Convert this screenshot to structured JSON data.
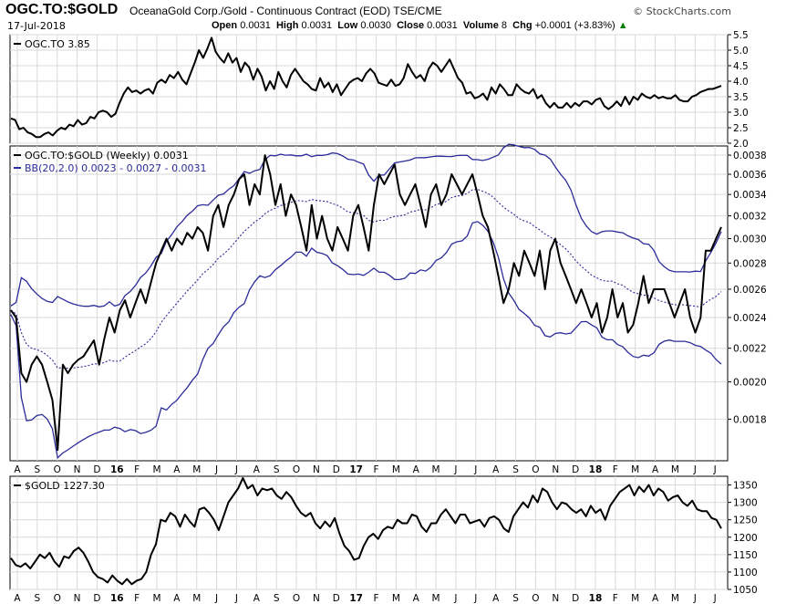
{
  "header": {
    "symbol": "OGC.TO:$GOLD",
    "description": "OceanaGold Corp./Gold - Continuous Contract (EOD) TSE/CME",
    "brand": "© StockCharts.com",
    "date": "17-Jul-2018",
    "open_label": "Open",
    "open_value": "0.0031",
    "high_label": "High",
    "high_value": "0.0031",
    "low_label": "Low",
    "low_value": "0.0030",
    "close_label": "Close",
    "close_value": "0.0031",
    "volume_label": "Volume",
    "volume_value": "8",
    "chg_label": "Chg",
    "chg_value": "+0.0001 (+3.83%)"
  },
  "colors": {
    "price_line": "#000000",
    "bb_band": "#2b2b9a",
    "grid": "#d9d9d9",
    "chg_up": "#008000"
  },
  "chart_data": [
    {
      "type": "line",
      "legend": "OGC.TO 3.85",
      "x_labels": [
        "A",
        "S",
        "O",
        "N",
        "D",
        "16",
        "F",
        "M",
        "A",
        "M",
        "J",
        "J",
        "A",
        "S",
        "O",
        "N",
        "D",
        "17",
        "F",
        "M",
        "A",
        "M",
        "J",
        "J",
        "A",
        "S",
        "O",
        "N",
        "D",
        "18",
        "F",
        "M",
        "A",
        "M",
        "J",
        "J"
      ],
      "yticks": [
        "5.5",
        "5.0",
        "4.5",
        "4.0",
        "3.5",
        "3.0",
        "2.5",
        "2.0"
      ],
      "ylim": [
        2.0,
        5.5
      ],
      "values": [
        2.8,
        2.75,
        2.45,
        2.5,
        2.35,
        2.3,
        2.2,
        2.2,
        2.3,
        2.35,
        2.25,
        2.4,
        2.5,
        2.45,
        2.6,
        2.55,
        2.75,
        2.6,
        2.65,
        2.85,
        2.8,
        3.0,
        3.05,
        3.0,
        2.85,
        2.95,
        3.3,
        3.6,
        3.8,
        3.65,
        3.7,
        3.6,
        3.7,
        3.75,
        3.6,
        3.95,
        4.05,
        3.95,
        4.2,
        4.1,
        4.3,
        4.05,
        3.9,
        4.25,
        4.6,
        5.0,
        4.75,
        5.05,
        5.4,
        4.95,
        4.75,
        4.6,
        4.9,
        4.6,
        4.75,
        4.3,
        4.6,
        4.45,
        4.05,
        4.4,
        4.15,
        3.7,
        4.0,
        3.75,
        4.3,
        4.0,
        3.8,
        4.2,
        4.4,
        4.2,
        4.0,
        3.9,
        3.75,
        3.7,
        4.1,
        3.8,
        3.95,
        3.65,
        3.9,
        3.55,
        3.75,
        3.95,
        4.05,
        4.1,
        4.0,
        4.25,
        4.4,
        4.25,
        3.95,
        3.9,
        3.85,
        4.05,
        3.85,
        3.9,
        4.1,
        4.55,
        4.3,
        4.1,
        4.2,
        4.0,
        4.4,
        4.6,
        4.5,
        4.3,
        4.5,
        4.7,
        4.4,
        4.1,
        3.95,
        3.6,
        3.65,
        3.45,
        3.5,
        3.6,
        3.4,
        3.8,
        3.6,
        3.9,
        3.75,
        3.55,
        3.55,
        3.9,
        3.75,
        3.65,
        3.6,
        3.75,
        3.45,
        3.55,
        3.3,
        3.15,
        3.3,
        3.15,
        3.15,
        3.3,
        3.15,
        3.3,
        3.2,
        3.35,
        3.35,
        3.25,
        3.4,
        3.45,
        3.2,
        3.1,
        3.2,
        3.35,
        3.2,
        3.5,
        3.25,
        3.5,
        3.4,
        3.6,
        3.5,
        3.45,
        3.55,
        3.45,
        3.5,
        3.45,
        3.45,
        3.55,
        3.4,
        3.35,
        3.35,
        3.5,
        3.55,
        3.65,
        3.7,
        3.75,
        3.75,
        3.8,
        3.85
      ]
    },
    {
      "type": "line",
      "legend": "OGC.TO:$GOLD (Weekly) 0.0031",
      "bb_legend": "BB(20,2.0) 0.0023 - 0.0027 - 0.0031",
      "yticks": [
        "0.0038",
        "0.0036",
        "0.0034",
        "0.0032",
        "0.0030",
        "0.0028",
        "0.0026",
        "0.0024",
        "0.0022",
        "0.0020",
        "0.0018"
      ],
      "ylim": [
        0.0016,
        0.0039
      ],
      "log_scale": true,
      "values": [
        0.00245,
        0.0024,
        0.00205,
        0.002,
        0.0021,
        0.00215,
        0.0021,
        0.002,
        0.0019,
        0.00165,
        0.0021,
        0.00205,
        0.0021,
        0.00213,
        0.00215,
        0.0022,
        0.00225,
        0.0021,
        0.00226,
        0.0024,
        0.0023,
        0.00245,
        0.00252,
        0.0024,
        0.0025,
        0.0026,
        0.0025,
        0.00265,
        0.0028,
        0.0029,
        0.003,
        0.0029,
        0.003,
        0.00295,
        0.00305,
        0.003,
        0.0031,
        0.00305,
        0.0029,
        0.0032,
        0.0033,
        0.0031,
        0.0033,
        0.0034,
        0.00355,
        0.0036,
        0.0033,
        0.0035,
        0.0034,
        0.0038,
        0.0036,
        0.0033,
        0.0035,
        0.0032,
        0.0034,
        0.0033,
        0.0031,
        0.0029,
        0.0033,
        0.003,
        0.0032,
        0.003,
        0.0029,
        0.0031,
        0.003,
        0.0029,
        0.0032,
        0.0033,
        0.0031,
        0.0029,
        0.0033,
        0.0036,
        0.0035,
        0.0036,
        0.0037,
        0.0034,
        0.0033,
        0.0034,
        0.0035,
        0.0033,
        0.0031,
        0.0034,
        0.0035,
        0.0033,
        0.0034,
        0.0036,
        0.0035,
        0.0034,
        0.0035,
        0.0036,
        0.0034,
        0.0032,
        0.0031,
        0.0029,
        0.0027,
        0.0025,
        0.0026,
        0.0028,
        0.0027,
        0.0029,
        0.0028,
        0.0027,
        0.0029,
        0.0026,
        0.0029,
        0.003,
        0.0028,
        0.0027,
        0.0026,
        0.0025,
        0.0026,
        0.0025,
        0.0024,
        0.0025,
        0.0023,
        0.0024,
        0.0026,
        0.0024,
        0.0025,
        0.0023,
        0.00235,
        0.0025,
        0.0027,
        0.0025,
        0.0026,
        0.0026,
        0.0026,
        0.0025,
        0.0024,
        0.0025,
        0.0026,
        0.0024,
        0.0023,
        0.0024,
        0.0029,
        0.0029,
        0.003,
        0.0031
      ]
    },
    {
      "type": "line",
      "legend": "$GOLD 1227.30",
      "yticks": [
        "1350",
        "1300",
        "1250",
        "1200",
        "1150",
        "1100",
        "1050"
      ],
      "ylim": [
        1050,
        1375
      ],
      "values": [
        1140,
        1120,
        1115,
        1125,
        1110,
        1130,
        1150,
        1140,
        1155,
        1130,
        1115,
        1145,
        1140,
        1160,
        1170,
        1155,
        1130,
        1100,
        1085,
        1080,
        1070,
        1090,
        1075,
        1065,
        1080,
        1065,
        1075,
        1080,
        1100,
        1150,
        1180,
        1250,
        1245,
        1270,
        1260,
        1230,
        1265,
        1245,
        1230,
        1280,
        1285,
        1270,
        1250,
        1220,
        1260,
        1300,
        1320,
        1340,
        1370,
        1340,
        1350,
        1320,
        1340,
        1335,
        1340,
        1320,
        1310,
        1330,
        1315,
        1290,
        1270,
        1260,
        1270,
        1240,
        1225,
        1245,
        1230,
        1255,
        1210,
        1175,
        1160,
        1135,
        1140,
        1175,
        1200,
        1210,
        1195,
        1220,
        1230,
        1225,
        1250,
        1240,
        1240,
        1265,
        1260,
        1230,
        1215,
        1240,
        1240,
        1265,
        1280,
        1260,
        1240,
        1265,
        1265,
        1240,
        1245,
        1250,
        1230,
        1255,
        1260,
        1250,
        1225,
        1215,
        1260,
        1280,
        1300,
        1285,
        1320,
        1300,
        1340,
        1330,
        1300,
        1280,
        1300,
        1295,
        1280,
        1270,
        1280,
        1260,
        1290,
        1270,
        1280,
        1250,
        1290,
        1310,
        1330,
        1340,
        1350,
        1320,
        1345,
        1330,
        1350,
        1320,
        1340,
        1330,
        1305,
        1315,
        1320,
        1300,
        1290,
        1305,
        1280,
        1275,
        1275,
        1255,
        1250,
        1225
      ]
    }
  ]
}
